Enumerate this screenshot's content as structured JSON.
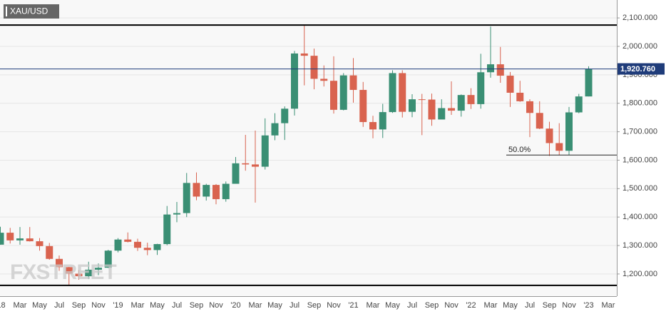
{
  "chart_data": {
    "type": "candlestick",
    "title": "XAU/USD",
    "watermark": "FXSTREET",
    "categories": [
      "'18",
      null,
      "Mar",
      null,
      "May",
      null,
      "Jul",
      null,
      "Sep",
      null,
      "Nov",
      null,
      "'19",
      null,
      "Mar",
      null,
      "May",
      null,
      "Jul",
      null,
      "Sep",
      null,
      "Nov",
      null,
      "'20",
      null,
      "Mar",
      null,
      "May",
      null,
      "Jul",
      null,
      "Sep",
      null,
      "Nov",
      null,
      "'21",
      null,
      "Mar",
      null,
      "May",
      null,
      "Jul",
      null,
      "Sep",
      null,
      "Nov",
      null,
      "'22",
      null,
      "Mar",
      null,
      "May",
      null,
      "Jul",
      null,
      "Sep",
      null,
      "Nov",
      null,
      "'23",
      null,
      "Mar"
    ],
    "open": [
      1303,
      1345,
      1318,
      1325,
      1315,
      1298,
      1253,
      1224,
      1201,
      1192,
      1215,
      1222,
      1282,
      1321,
      1313,
      1292,
      1284,
      1305,
      1409,
      1414,
      1520,
      1472,
      1513,
      1463,
      1517,
      1589,
      1585,
      1577,
      1687,
      1730,
      1781,
      1975,
      1967,
      1886,
      1879,
      1777,
      1898,
      1847,
      1734,
      1708,
      1769,
      1906,
      1770,
      1814,
      1813,
      1743,
      1783,
      1774,
      1829,
      1797,
      1909,
      1937,
      1897,
      1837,
      1807,
      1766,
      1711,
      1660,
      1633,
      1768,
      1824,
      null,
      null
    ],
    "high": [
      1366,
      1362,
      1365,
      1365,
      1326,
      1309,
      1265,
      1225,
      1214,
      1243,
      1237,
      1285,
      1326,
      1346,
      1324,
      1310,
      1306,
      1439,
      1453,
      1555,
      1557,
      1517,
      1516,
      1525,
      1611,
      1689,
      1704,
      1747,
      1765,
      1789,
      1984,
      2075,
      1992,
      1933,
      1965,
      1906,
      1959,
      1875,
      1756,
      1798,
      1916,
      1916,
      1832,
      1833,
      1834,
      1814,
      1877,
      1831,
      1853,
      1974,
      2070,
      1998,
      1910,
      1879,
      1814,
      1807,
      1735,
      1730,
      1787,
      1833,
      1930,
      null,
      null
    ],
    "low": [
      1303,
      1307,
      1303,
      1314,
      1282,
      1250,
      1211,
      1160,
      1180,
      1182,
      1196,
      1221,
      1276,
      1311,
      1281,
      1266,
      1267,
      1301,
      1382,
      1400,
      1459,
      1458,
      1445,
      1454,
      1517,
      1563,
      1451,
      1567,
      1670,
      1671,
      1757,
      1863,
      1849,
      1859,
      1764,
      1775,
      1802,
      1717,
      1677,
      1678,
      1766,
      1750,
      1751,
      1688,
      1721,
      1746,
      1759,
      1753,
      1780,
      1781,
      1890,
      1872,
      1787,
      1805,
      1681,
      1709,
      1615,
      1617,
      1617,
      1765,
      1824,
      null,
      null
    ],
    "close": [
      1345,
      1318,
      1325,
      1315,
      1298,
      1253,
      1224,
      1201,
      1192,
      1215,
      1222,
      1282,
      1321,
      1313,
      1292,
      1284,
      1305,
      1409,
      1414,
      1520,
      1472,
      1513,
      1463,
      1517,
      1589,
      1585,
      1577,
      1687,
      1730,
      1781,
      1975,
      1967,
      1886,
      1879,
      1777,
      1898,
      1847,
      1734,
      1708,
      1769,
      1906,
      1770,
      1814,
      1813,
      1743,
      1783,
      1774,
      1829,
      1797,
      1909,
      1937,
      1897,
      1837,
      1807,
      1766,
      1711,
      1660,
      1633,
      1768,
      1824,
      1921,
      null,
      null
    ],
    "up_color": "#3a8f74",
    "down_color": "#d9634f",
    "ylim": [
      1122,
      2163
    ],
    "yticks": [
      {
        "value": 1200,
        "label": "1,200.000"
      },
      {
        "value": 1300,
        "label": "1,300.000"
      },
      {
        "value": 1400,
        "label": "1,400.000"
      },
      {
        "value": 1500,
        "label": "1,500.000"
      },
      {
        "value": 1600,
        "label": "1,600.000"
      },
      {
        "value": 1700,
        "label": "1,700.000"
      },
      {
        "value": 1800,
        "label": "1,800.000"
      },
      {
        "value": 1900,
        "label": "1,900.000"
      },
      {
        "value": 2000,
        "label": "2,000.000"
      },
      {
        "value": 2100,
        "label": "2,100.000"
      }
    ],
    "grid": true,
    "levels": [
      2075,
      1160
    ],
    "level_color": "#000000",
    "current_price": {
      "value": 1920.76,
      "label": "1,920.760",
      "color": "#1f3c7a"
    },
    "fib_level": {
      "value": 1618,
      "label": "50.0%"
    }
  }
}
